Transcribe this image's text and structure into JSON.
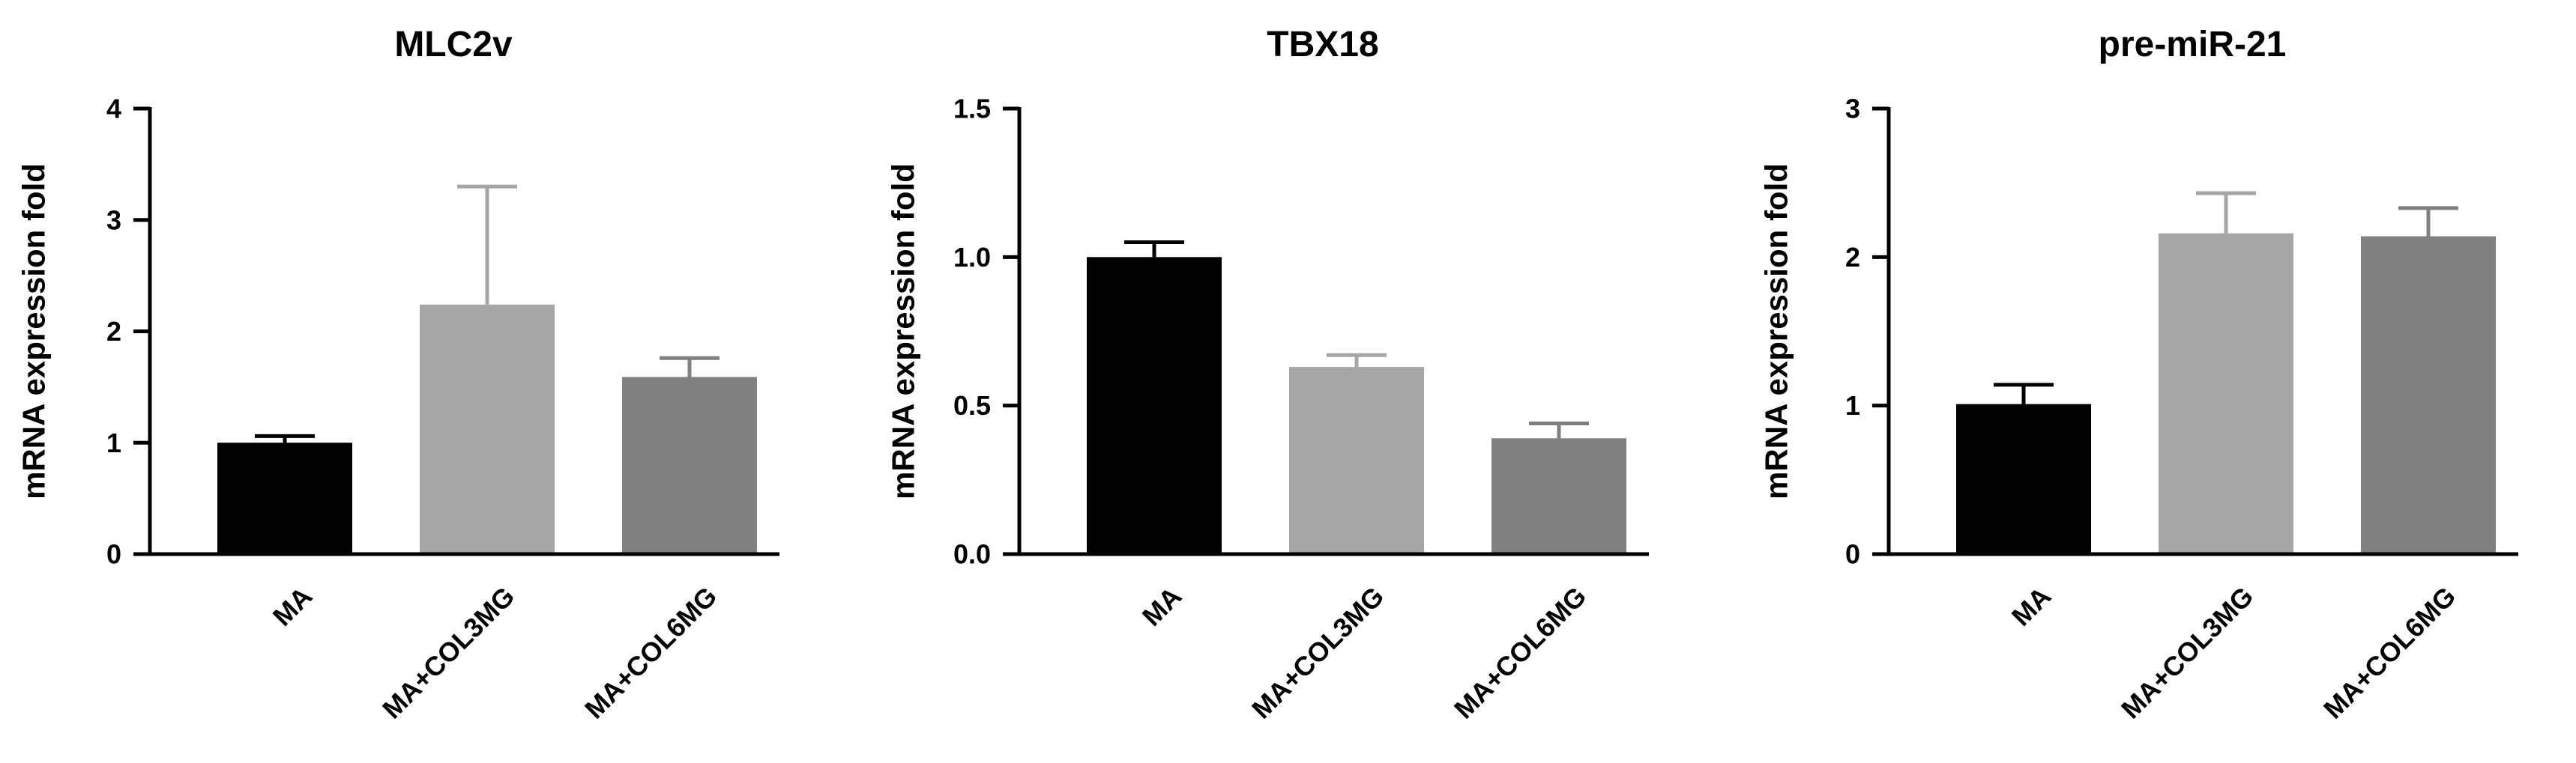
{
  "chart_data": [
    {
      "type": "bar",
      "title": "MLC2v",
      "xlabel": "",
      "ylabel": "mRNA expression fold",
      "categories": [
        "MA",
        "MA+COL3MG",
        "MA+COL6MG"
      ],
      "values": [
        1.0,
        2.24,
        1.59
      ],
      "errors": [
        0.06,
        1.06,
        0.17
      ],
      "ylim": [
        0,
        4
      ],
      "yticks": [
        0,
        1,
        2,
        3,
        4
      ],
      "ytick_labels": [
        "0",
        "1",
        "2",
        "3",
        "4"
      ],
      "bar_colors": [
        "#000000",
        "#a6a6a6",
        "#808080"
      ],
      "grid": false,
      "legend": "none"
    },
    {
      "type": "bar",
      "title": "TBX18",
      "xlabel": "",
      "ylabel": "mRNA expression fold",
      "categories": [
        "MA",
        "MA+COL3MG",
        "MA+COL6MG"
      ],
      "values": [
        1.0,
        0.63,
        0.39
      ],
      "errors": [
        0.05,
        0.04,
        0.05
      ],
      "ylim": [
        0,
        1.5
      ],
      "yticks": [
        0,
        0.5,
        1.0,
        1.5
      ],
      "ytick_labels": [
        "0.0",
        "0.5",
        "1.0",
        "1.5"
      ],
      "bar_colors": [
        "#000000",
        "#a6a6a6",
        "#808080"
      ],
      "grid": false,
      "legend": "none"
    },
    {
      "type": "bar",
      "title": "pre-miR-21",
      "xlabel": "",
      "ylabel": "mRNA expression fold",
      "categories": [
        "MA",
        "MA+COL3MG",
        "MA+COL6MG"
      ],
      "values": [
        1.01,
        2.16,
        2.14
      ],
      "errors": [
        0.13,
        0.27,
        0.19
      ],
      "ylim": [
        0,
        3
      ],
      "yticks": [
        0,
        1,
        2,
        3
      ],
      "ytick_labels": [
        "0",
        "1",
        "2",
        "3"
      ],
      "bar_colors": [
        "#000000",
        "#a6a6a6",
        "#808080"
      ],
      "grid": false,
      "legend": "none"
    }
  ]
}
